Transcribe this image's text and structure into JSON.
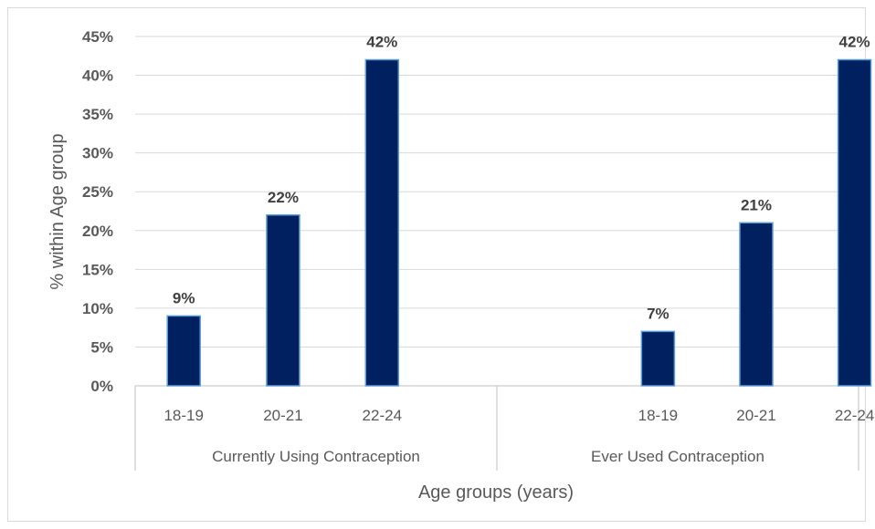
{
  "chart_data": {
    "type": "bar",
    "title": "",
    "xlabel": "Age groups (years)",
    "ylabel": "% within Age group",
    "ylim": [
      0,
      45
    ],
    "y_ticks": [
      0,
      5,
      10,
      15,
      20,
      25,
      30,
      35,
      40,
      45
    ],
    "y_tick_suffix": "%",
    "grid": true,
    "legend": "none",
    "bar_color": "#002060",
    "bar_edge_color": "#5b9bd5",
    "groups": [
      {
        "label": "Currently Using Contraception",
        "categories": [
          "18-19",
          "20-21",
          "22-24"
        ],
        "values": [
          9,
          22,
          42
        ],
        "data_labels": [
          "9%",
          "22%",
          "42%"
        ]
      },
      {
        "label": "Ever Used Contraception",
        "categories": [
          "18-19",
          "20-21",
          "22-24"
        ],
        "values": [
          7,
          21,
          42
        ],
        "data_labels": [
          "7%",
          "21%",
          "42%"
        ]
      }
    ]
  }
}
